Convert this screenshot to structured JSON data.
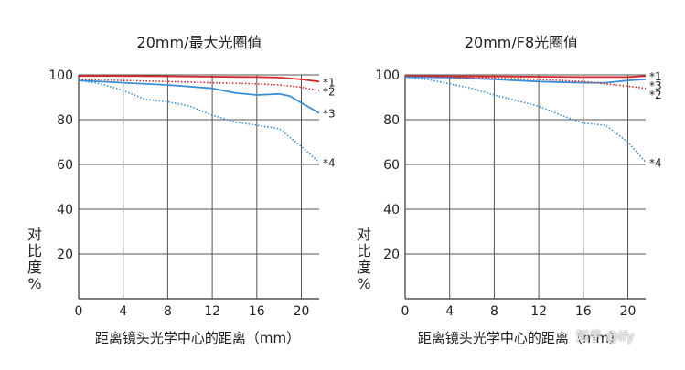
{
  "chart_data": [
    {
      "type": "line",
      "title": "20mm/最大光圈值",
      "xlabel": "距离镜头光学中心的距离（mm）",
      "ylabel": "对比度%",
      "xlim": [
        0,
        21.6
      ],
      "ylim": [
        0,
        100
      ],
      "xticks": [
        0,
        4,
        8,
        12,
        16,
        20
      ],
      "yticks": [
        20,
        40,
        60,
        80,
        100
      ],
      "grid": true,
      "series": [
        {
          "name": "*1",
          "color": "#d62728",
          "style": "solid",
          "x": [
            0,
            4,
            8,
            12,
            16,
            18,
            20,
            21.6
          ],
          "y": [
            99.5,
            99.5,
            99.4,
            99.2,
            99,
            98.8,
            98,
            97
          ]
        },
        {
          "name": "*2",
          "color": "#d62728",
          "style": "dotted",
          "x": [
            0,
            4,
            8,
            12,
            16,
            18,
            20,
            21.6
          ],
          "y": [
            98,
            97.5,
            97,
            96.5,
            96,
            95.5,
            94.5,
            93
          ]
        },
        {
          "name": "*3",
          "color": "#3b8fd6",
          "style": "solid",
          "x": [
            0,
            4,
            8,
            12,
            14,
            16,
            18,
            19,
            20,
            21.6
          ],
          "y": [
            97.5,
            96.5,
            95.5,
            94,
            92,
            91,
            91.5,
            90.5,
            87.5,
            83
          ]
        },
        {
          "name": "*4",
          "color": "#3b8fd6",
          "style": "dotted",
          "x": [
            0,
            2,
            4,
            6,
            8,
            10,
            12,
            14,
            16,
            18,
            20,
            21.6
          ],
          "y": [
            97.5,
            96,
            93,
            89,
            88,
            86,
            82,
            79,
            77.5,
            76,
            68,
            61
          ]
        }
      ]
    },
    {
      "type": "line",
      "title": "20mm/F8光圈值",
      "xlabel": "距离镜头光学中心的距离（mm）",
      "ylabel": "对比度%",
      "xlim": [
        0,
        21.6
      ],
      "ylim": [
        0,
        100
      ],
      "xticks": [
        0,
        4,
        8,
        12,
        16,
        20
      ],
      "yticks": [
        20,
        40,
        60,
        80,
        100
      ],
      "grid": true,
      "series": [
        {
          "name": "*1",
          "color": "#d62728",
          "style": "solid",
          "x": [
            0,
            4,
            8,
            12,
            16,
            20,
            21.6
          ],
          "y": [
            99.5,
            99.4,
            99.3,
            99.2,
            99,
            99,
            99.5
          ]
        },
        {
          "name": "*3",
          "color": "#3b8fd6",
          "style": "solid",
          "x": [
            0,
            4,
            8,
            12,
            16,
            18,
            20,
            21.6
          ],
          "y": [
            99,
            98.8,
            98,
            97,
            96.5,
            96.5,
            97.5,
            98
          ]
        },
        {
          "name": "*2",
          "color": "#d62728",
          "style": "dotted",
          "x": [
            0,
            4,
            8,
            12,
            16,
            18,
            20,
            21.6
          ],
          "y": [
            99.5,
            99,
            98.5,
            98,
            97,
            96,
            95,
            94
          ]
        },
        {
          "name": "*4",
          "color": "#3b8fd6",
          "style": "dotted",
          "x": [
            0,
            2,
            4,
            6,
            8,
            10,
            12,
            14,
            16,
            18,
            20,
            21.6
          ],
          "y": [
            99,
            98,
            96,
            94,
            91,
            88.5,
            86,
            82,
            78.5,
            77.5,
            70,
            61
          ]
        }
      ]
    }
  ],
  "watermark": "知乎 @lfy"
}
